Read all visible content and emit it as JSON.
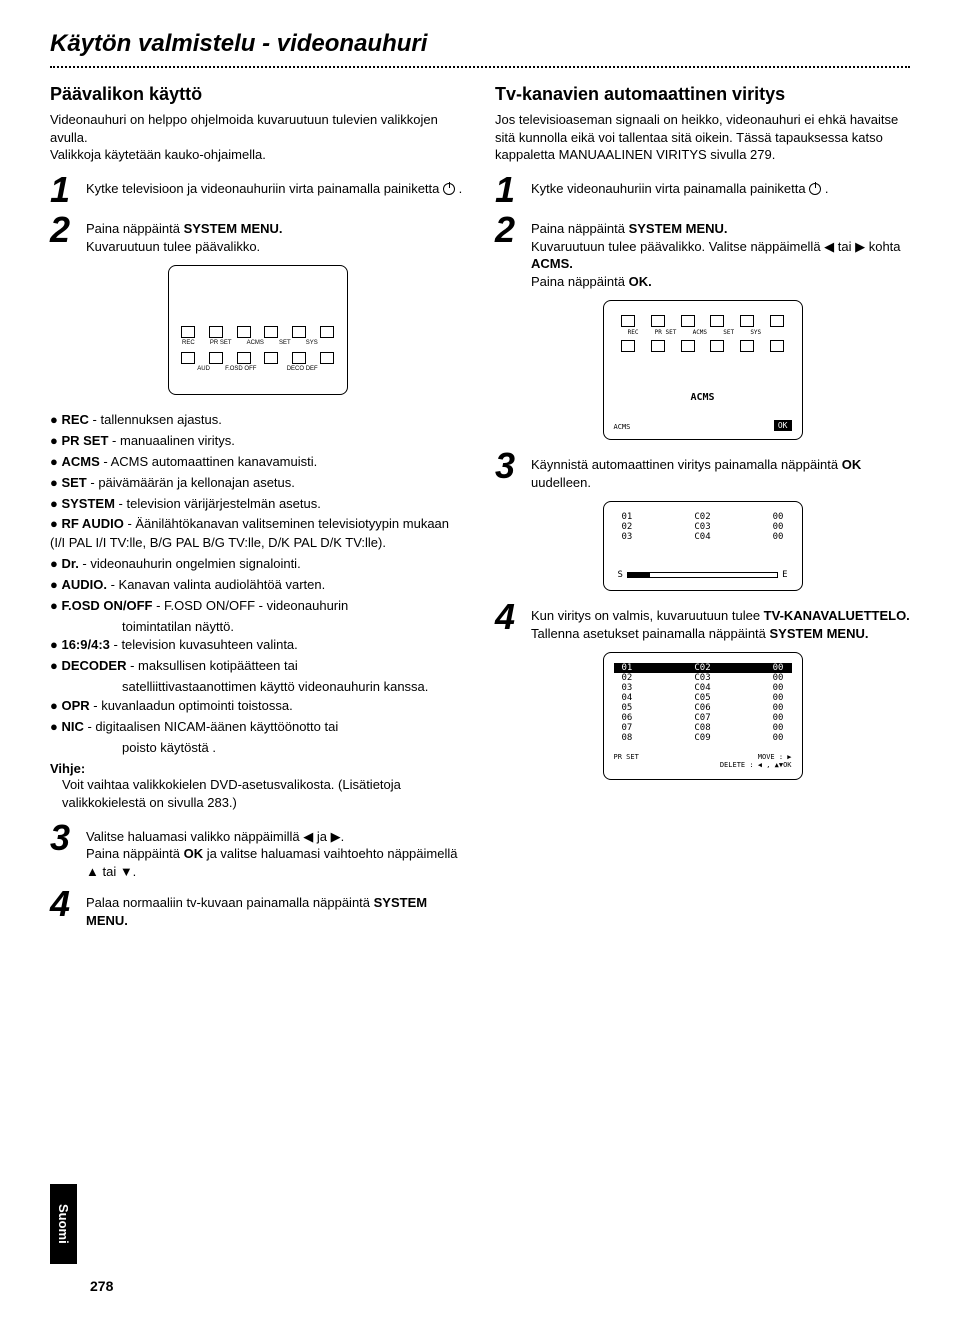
{
  "page_title": "Käytön valmistelu - videonauhuri",
  "left": {
    "section_title": "Päävalikon käyttö",
    "intro": "Videonauhuri on helppo ohjelmoida kuvaruutuun tulevien valikkojen avulla.",
    "intro2": "Valikkoja käytetään kauko-ohjaimella.",
    "steps": {
      "1": "Kytke televisioon ja videonauhuriin virta painamalla painiketta ",
      "2a": "Paina näppäintä ",
      "2b": "SYSTEM MENU.",
      "2c": "Kuvaruutuun tulee päävalikko."
    },
    "bullets": [
      {
        "label": "REC",
        "desc": " - tallennuksen ajastus."
      },
      {
        "label": "PR SET",
        "desc": " - manuaalinen viritys."
      },
      {
        "label": "ACMS",
        "desc": " - ACMS automaattinen kanavamuisti."
      },
      {
        "label": "SET",
        "desc": " - päivämäärän ja kellonajan asetus."
      },
      {
        "label": "SYSTEM",
        "desc": " - television värijärjestelmän asetus."
      },
      {
        "label": "RF AUDIO",
        "desc": " - Äänilähtökanavan valitseminen televisiotyypin mukaan (I/I PAL I/I TV:lle, B/G PAL B/G TV:lle, D/K PAL D/K TV:lle).",
        "wrap": true
      },
      {
        "label": "Dr.",
        "desc": " - videonauhurin ongelmien signalointi."
      },
      {
        "label": "AUDIO.",
        "desc": " - Kanavan valinta audiolähtöä varten."
      },
      {
        "label": "F.OSD ON/OFF",
        "desc": " - F.OSD ON/OFF - videonauhurin",
        "sub": "toimintatilan näyttö."
      },
      {
        "label": "16:9/4:3",
        "desc": " - television kuvasuhteen valinta."
      },
      {
        "label": "DECODER",
        "desc": " - maksullisen kotipäätteen tai",
        "sub": "satelliittivastaanottimen käyttö videonauhurin kanssa."
      },
      {
        "label": "OPR",
        "desc": " - kuvanlaadun optimointi toistossa."
      },
      {
        "label": "NIC",
        "desc": " - digitaalisen NICAM-äänen käyttöönotto tai",
        "sub": "poisto käytöstä ."
      }
    ],
    "vihje_label": "Vihje:",
    "vihje_text": "Voit vaihtaa valikkokielen DVD-asetusvalikosta. (Lisätietoja valikkokielestä on sivulla 283.)",
    "step3a": "Valitse haluamasi valikko näppäimillä ◀ ja ▶.",
    "step3b": "Paina näppäintä ",
    "step3c": "OK",
    "step3d": " ja valitse haluamasi vaihtoehto näppäimellä ▲ tai ▼.",
    "step4a": "Palaa normaaliin tv-kuvaan painamalla näppäintä ",
    "step4b": "SYSTEM MENU."
  },
  "right": {
    "section_title": "Tv-kanavien automaattinen viritys",
    "intro": "Jos televisioaseman signaali on heikko, videonauhuri ei ehkä havaitse sitä kunnolla eikä voi tallentaa sitä oikein. Tässä tapauksessa katso kappaletta MANUAALINEN VIRITYS sivulla 279.",
    "steps": {
      "1": "Kytke videonauhuriin virta painamalla painiketta ",
      "2a": "Paina näppäintä ",
      "2b": "SYSTEM MENU.",
      "2c": "Kuvaruutuun tulee päävalikko. Valitse näppäimellä ◀ tai ▶ kohta ",
      "2d": "ACMS.",
      "2e": "Paina näppäintä ",
      "2f": "OK.",
      "3a": "Käynnistä automaattinen viritys painamalla näppäintä ",
      "3b": "OK",
      "3c": " uudelleen.",
      "4a": "Kun viritys on valmis, kuvaruutuun tulee ",
      "4b": "TV-KANAVALUETTELO.",
      "4c": "Tallenna asetukset painamalla näppäintä ",
      "4d": "SYSTEM MENU."
    },
    "acms_label": "ACMS",
    "progress": {
      "rows": [
        [
          "01",
          "C02",
          "00"
        ],
        [
          "02",
          "C03",
          "00"
        ],
        [
          "03",
          "C04",
          "00"
        ]
      ],
      "s_label": "S",
      "e_label": "E"
    },
    "channel_table": {
      "rows": [
        [
          "01",
          "C02",
          "00"
        ],
        [
          "02",
          "C03",
          "00"
        ],
        [
          "03",
          "C04",
          "00"
        ],
        [
          "04",
          "C05",
          "00"
        ],
        [
          "05",
          "C06",
          "00"
        ],
        [
          "06",
          "C07",
          "00"
        ],
        [
          "07",
          "C08",
          "00"
        ],
        [
          "08",
          "C09",
          "00"
        ]
      ],
      "move_label": "MOVE :",
      "delete_label": "DELETE :",
      "prset_label": "PR SET"
    }
  },
  "tab_label": "Suomi",
  "page_number": "278",
  "menu_icons": {
    "row1": [
      "REC",
      "PR SET",
      "ACMS",
      "SET",
      "SYS",
      ""
    ],
    "row2": [
      "",
      "AUD",
      "F.OSD OFF",
      "",
      "DECO DEF",
      ""
    ]
  }
}
